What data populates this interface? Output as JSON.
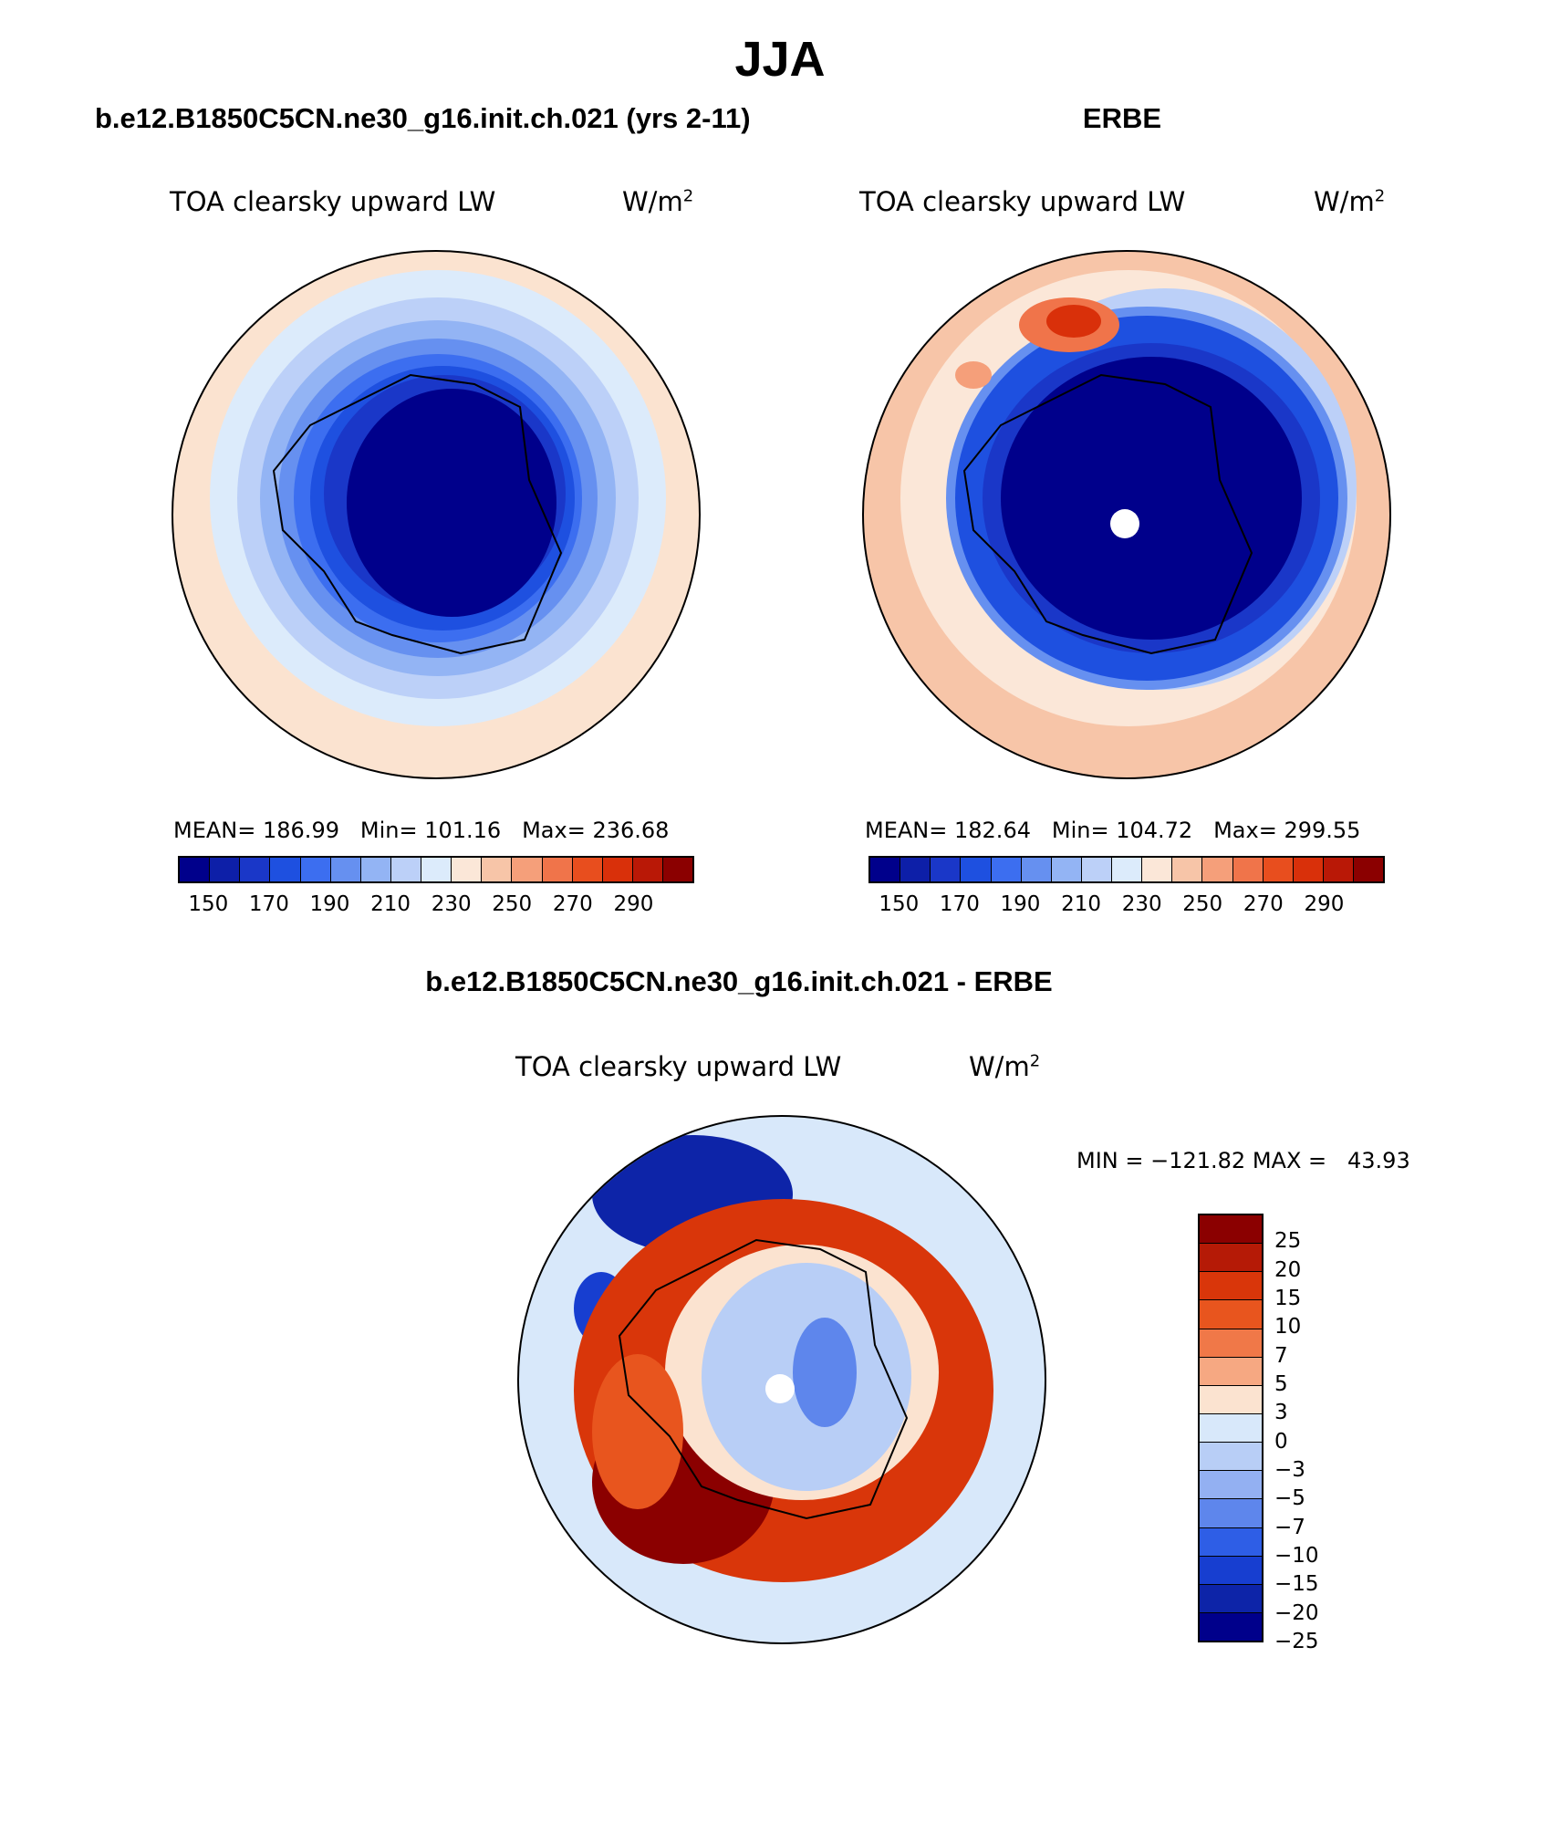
{
  "main_title": "JJA",
  "panels": {
    "model": {
      "header": "b.e12.B1850C5CN.ne30_g16.init.ch.021 (yrs 2-11)",
      "field": "TOA clearsky upward LW",
      "units": "W/m",
      "units_exp": "2",
      "stats": {
        "mean_label": "MEAN=",
        "mean": "186.99",
        "min_label": "Min=",
        "min": "101.16",
        "max_label": "Max=",
        "max": "236.68"
      }
    },
    "obs": {
      "header": "ERBE",
      "field": "TOA clearsky upward LW",
      "units": "W/m",
      "units_exp": "2",
      "stats": {
        "mean_label": "MEAN=",
        "mean": "182.64",
        "min_label": "Min=",
        "min": "104.72",
        "max_label": "Max=",
        "max": "299.55"
      }
    },
    "diff": {
      "header": "b.e12.B1850C5CN.ne30_g16.init.ch.021 - ERBE",
      "field": "TOA clearsky upward LW",
      "units": "W/m",
      "units_exp": "2",
      "range_text": "MIN = −121.82 MAX =   43.93"
    }
  },
  "chart_data": [
    {
      "type": "heatmap",
      "projection": "south-polar-stereographic",
      "title": "b.e12.B1850C5CN.ne30_g16.init.ch.021 (yrs 2-11)",
      "variable": "TOA clearsky upward LW",
      "units": "W/m^2",
      "mean": 186.99,
      "min": 101.16,
      "max": 236.68,
      "contour_levels": [
        140,
        150,
        160,
        170,
        180,
        190,
        200,
        210,
        220,
        230,
        240,
        250,
        260,
        270,
        280,
        290,
        300
      ],
      "colorbar_labels": [
        "150",
        "170",
        "190",
        "210",
        "230",
        "250",
        "270",
        "290"
      ]
    },
    {
      "type": "heatmap",
      "projection": "south-polar-stereographic",
      "title": "ERBE",
      "variable": "TOA clearsky upward LW",
      "units": "W/m^2",
      "mean": 182.64,
      "min": 104.72,
      "max": 299.55,
      "contour_levels": [
        140,
        150,
        160,
        170,
        180,
        190,
        200,
        210,
        220,
        230,
        240,
        250,
        260,
        270,
        280,
        290,
        300
      ],
      "colorbar_labels": [
        "150",
        "170",
        "190",
        "210",
        "230",
        "250",
        "270",
        "290"
      ]
    },
    {
      "type": "heatmap",
      "projection": "south-polar-stereographic",
      "title": "b.e12.B1850C5CN.ne30_g16.init.ch.021 - ERBE",
      "variable": "TOA clearsky upward LW",
      "units": "W/m^2",
      "min": -121.82,
      "max": 43.93,
      "contour_levels": [
        -25,
        -20,
        -15,
        -10,
        -7,
        -5,
        -3,
        0,
        3,
        5,
        7,
        10,
        15,
        20,
        25
      ],
      "colorbar_labels": [
        "25",
        "20",
        "15",
        "10",
        "7",
        "5",
        "3",
        "0",
        "−3",
        "−5",
        "−7",
        "−10",
        "−15",
        "−20",
        "−25"
      ]
    }
  ],
  "colors": {
    "seq": [
      "#00008b",
      "#0d1fa8",
      "#1a37c8",
      "#1e50e0",
      "#3c6ef0",
      "#6690f0",
      "#93b4f4",
      "#bcd0f8",
      "#dcebfb",
      "#fbe7d8",
      "#f7c5a8",
      "#f59f7a",
      "#f0744a",
      "#e84e1e",
      "#d9300a",
      "#b91806",
      "#8b0000"
    ],
    "div": [
      "#8b0000",
      "#b51a06",
      "#d9360a",
      "#e8551e",
      "#f07848",
      "#f6a882",
      "#fbe3d0",
      "#d8e8fa",
      "#b8cef6",
      "#93b0f2",
      "#5e86ec",
      "#2e5ee6",
      "#173ed0",
      "#0d24a8",
      "#00008b"
    ],
    "outline": "#000000"
  }
}
